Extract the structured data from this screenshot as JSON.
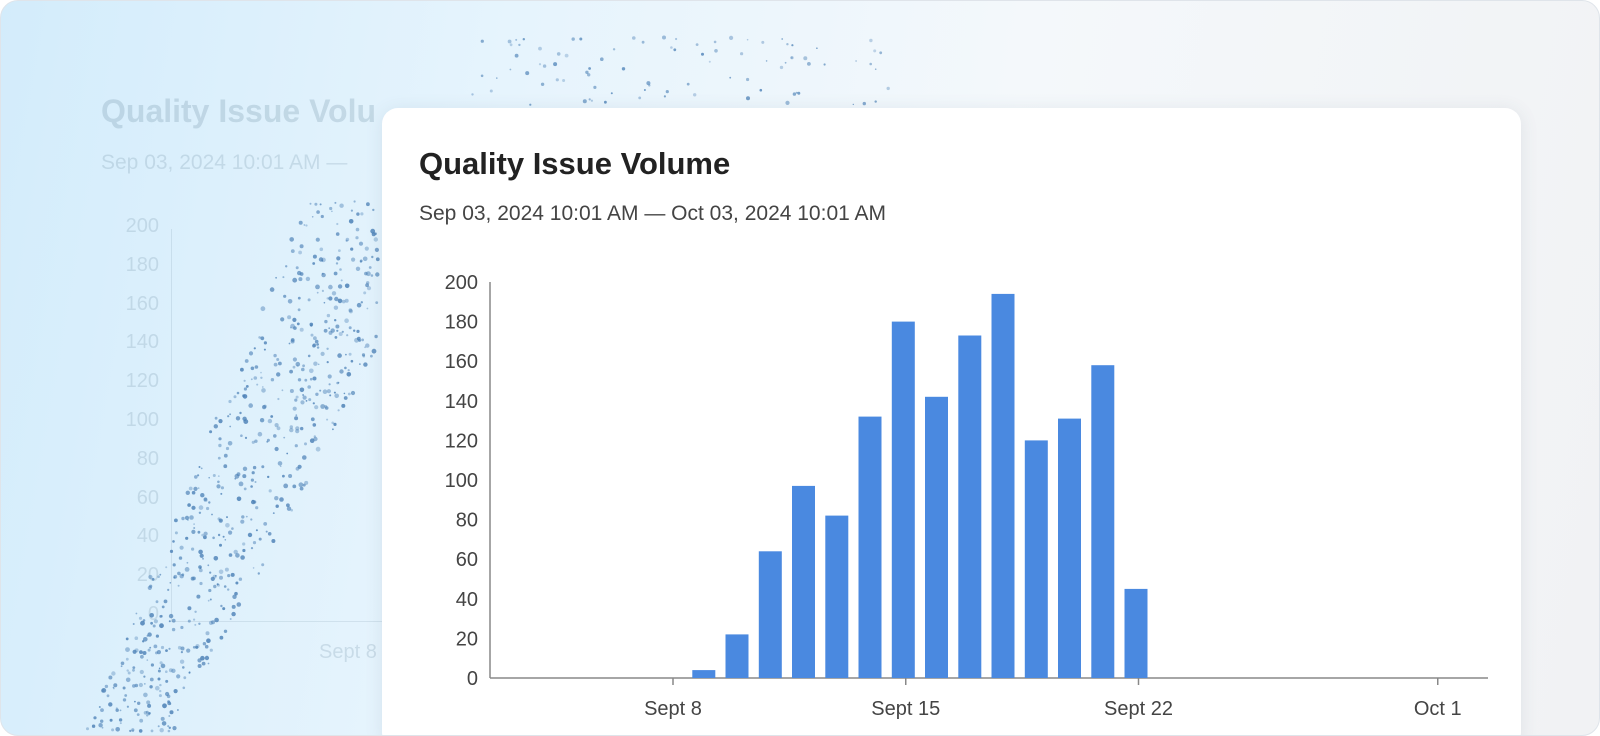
{
  "background": {
    "ghost_title": "Quality Issue Volu",
    "ghost_subtitle": "Sep 03, 2024 10:01 AM —",
    "ghost_y_ticks": [
      "200",
      "180",
      "160",
      "140",
      "120",
      "100",
      "80",
      "60",
      "40",
      "20",
      "0"
    ],
    "ghost_x_tick": "Sept 8"
  },
  "card": {
    "title": "Quality Issue Volume",
    "subtitle": "Sep 03, 2024 10:01 AM — Oct 03, 2024 10:01 AM"
  },
  "colors": {
    "bar": "#4a89e0",
    "axis": "#888888"
  },
  "chart_data": {
    "type": "bar",
    "title": "Quality Issue Volume",
    "subtitle": "Sep 03, 2024 10:01 AM — Oct 03, 2024 10:01 AM",
    "xlabel": "",
    "ylabel": "",
    "ylim": [
      0,
      200
    ],
    "y_ticks": [
      0,
      20,
      40,
      60,
      80,
      100,
      120,
      140,
      160,
      180,
      200
    ],
    "x_ticks": [
      {
        "label": "Sept 8",
        "date": "2024-09-08"
      },
      {
        "label": "Sept 15",
        "date": "2024-09-15"
      },
      {
        "label": "Sept 22",
        "date": "2024-09-22"
      },
      {
        "label": "Oct 1",
        "date": "2024-10-01"
      }
    ],
    "x_range": [
      "2024-09-03",
      "2024-10-03"
    ],
    "grid": false,
    "bars": [
      {
        "date": "2024-09-09",
        "value": 4
      },
      {
        "date": "2024-09-10",
        "value": 22
      },
      {
        "date": "2024-09-11",
        "value": 64
      },
      {
        "date": "2024-09-12",
        "value": 97
      },
      {
        "date": "2024-09-13",
        "value": 82
      },
      {
        "date": "2024-09-14",
        "value": 132
      },
      {
        "date": "2024-09-15",
        "value": 180
      },
      {
        "date": "2024-09-16",
        "value": 142
      },
      {
        "date": "2024-09-17",
        "value": 173
      },
      {
        "date": "2024-09-18",
        "value": 194
      },
      {
        "date": "2024-09-19",
        "value": 120
      },
      {
        "date": "2024-09-20",
        "value": 131
      },
      {
        "date": "2024-09-21",
        "value": 158
      },
      {
        "date": "2024-09-22",
        "value": 45
      }
    ]
  }
}
